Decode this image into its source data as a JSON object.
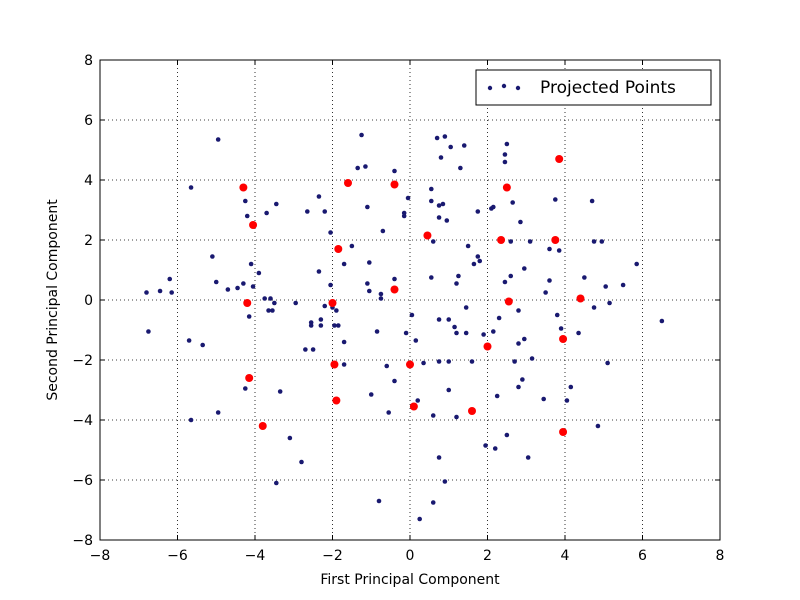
{
  "chart_data": {
    "type": "scatter",
    "title": "",
    "xlabel": "First Principal Component",
    "ylabel": "Second Principal Component",
    "xlim": [
      -8,
      8
    ],
    "ylim": [
      -8,
      8
    ],
    "xticks": [
      -8,
      -6,
      -4,
      -2,
      0,
      2,
      4,
      6,
      8
    ],
    "yticks": [
      -8,
      -6,
      -4,
      -2,
      0,
      2,
      4,
      6,
      8
    ],
    "grid": true,
    "legend": {
      "position": "top-right",
      "entries": [
        "Projected Points"
      ]
    },
    "colors": {
      "projected": "#191970",
      "highlight": "#ff0000"
    },
    "series": [
      {
        "name": "Projected Points",
        "color": "#191970",
        "points": [
          [
            -6.8,
            0.25
          ],
          [
            -6.75,
            -1.05
          ],
          [
            -6.45,
            0.3
          ],
          [
            -6.2,
            0.7
          ],
          [
            -6.15,
            0.25
          ],
          [
            -5.7,
            -1.35
          ],
          [
            -5.65,
            3.75
          ],
          [
            -5.65,
            -4.0
          ],
          [
            -5.35,
            -1.5
          ],
          [
            -5.1,
            1.45
          ],
          [
            -5.0,
            0.6
          ],
          [
            -4.95,
            5.35
          ],
          [
            -4.95,
            -3.75
          ],
          [
            -4.7,
            0.35
          ],
          [
            -4.45,
            0.4
          ],
          [
            -4.3,
            0.55
          ],
          [
            -4.25,
            3.3
          ],
          [
            -4.25,
            -2.95
          ],
          [
            -4.2,
            2.8
          ],
          [
            -4.15,
            -0.55
          ],
          [
            -4.05,
            0.45
          ],
          [
            -4.1,
            1.2
          ],
          [
            -3.9,
            0.9
          ],
          [
            -3.75,
            0.05
          ],
          [
            -3.7,
            2.9
          ],
          [
            -3.65,
            -0.35
          ],
          [
            -3.55,
            -0.35
          ],
          [
            -3.6,
            0.05
          ],
          [
            -3.5,
            -0.1
          ],
          [
            -3.45,
            3.2
          ],
          [
            -3.35,
            -3.05
          ],
          [
            -3.45,
            -6.1
          ],
          [
            -3.1,
            -4.6
          ],
          [
            -2.95,
            -0.1
          ],
          [
            -2.8,
            -5.4
          ],
          [
            -2.7,
            -1.65
          ],
          [
            -2.65,
            2.95
          ],
          [
            -2.55,
            -0.75
          ],
          [
            -2.55,
            -0.85
          ],
          [
            -2.5,
            -1.65
          ],
          [
            -2.35,
            3.45
          ],
          [
            -2.35,
            0.95
          ],
          [
            -2.3,
            -0.85
          ],
          [
            -2.3,
            -0.65
          ],
          [
            -2.2,
            2.95
          ],
          [
            -2.2,
            -0.2
          ],
          [
            -2.05,
            2.25
          ],
          [
            -2.05,
            0.5
          ],
          [
            -2.0,
            -0.25
          ],
          [
            -1.95,
            -0.85
          ],
          [
            -1.9,
            -0.35
          ],
          [
            -1.85,
            -0.85
          ],
          [
            -1.7,
            1.2
          ],
          [
            -1.7,
            -1.4
          ],
          [
            -1.7,
            -2.15
          ],
          [
            -1.5,
            1.8
          ],
          [
            -1.35,
            4.4
          ],
          [
            -1.25,
            5.5
          ],
          [
            -1.15,
            4.45
          ],
          [
            -1.1,
            3.1
          ],
          [
            -1.1,
            0.55
          ],
          [
            -1.05,
            0.3
          ],
          [
            -1.05,
            1.25
          ],
          [
            -1.0,
            -3.15
          ],
          [
            -0.85,
            -1.05
          ],
          [
            -0.8,
            -6.7
          ],
          [
            -0.75,
            0.05
          ],
          [
            -0.75,
            0.2
          ],
          [
            -0.7,
            2.3
          ],
          [
            -0.6,
            -2.2
          ],
          [
            -0.55,
            -3.75
          ],
          [
            -0.4,
            0.7
          ],
          [
            -0.4,
            4.3
          ],
          [
            -0.4,
            -2.7
          ],
          [
            -0.15,
            2.9
          ],
          [
            -0.15,
            2.8
          ],
          [
            -0.1,
            -1.1
          ],
          [
            -0.05,
            3.4
          ],
          [
            0.05,
            -0.5
          ],
          [
            0.15,
            -1.35
          ],
          [
            0.2,
            -3.35
          ],
          [
            0.25,
            -7.3
          ],
          [
            0.35,
            -2.1
          ],
          [
            0.55,
            3.7
          ],
          [
            0.55,
            3.3
          ],
          [
            0.55,
            0.75
          ],
          [
            0.6,
            1.95
          ],
          [
            0.6,
            -3.85
          ],
          [
            0.6,
            -6.75
          ],
          [
            0.7,
            5.4
          ],
          [
            0.75,
            3.15
          ],
          [
            0.75,
            2.75
          ],
          [
            0.75,
            -0.65
          ],
          [
            0.75,
            -2.05
          ],
          [
            0.75,
            -5.25
          ],
          [
            0.8,
            4.75
          ],
          [
            0.85,
            3.2
          ],
          [
            0.9,
            -6.05
          ],
          [
            0.9,
            5.45
          ],
          [
            0.95,
            2.65
          ],
          [
            1.0,
            -0.65
          ],
          [
            1.0,
            -2.05
          ],
          [
            1.0,
            -3.0
          ],
          [
            1.05,
            5.1
          ],
          [
            1.15,
            -0.9
          ],
          [
            1.2,
            -1.1
          ],
          [
            1.2,
            0.55
          ],
          [
            1.2,
            -3.9
          ],
          [
            1.25,
            0.8
          ],
          [
            1.3,
            4.4
          ],
          [
            1.4,
            5.15
          ],
          [
            1.45,
            -0.25
          ],
          [
            1.45,
            -1.1
          ],
          [
            1.5,
            1.8
          ],
          [
            1.6,
            -2.05
          ],
          [
            1.65,
            1.2
          ],
          [
            1.75,
            1.45
          ],
          [
            1.75,
            2.95
          ],
          [
            1.8,
            1.3
          ],
          [
            1.9,
            -1.15
          ],
          [
            1.95,
            -4.85
          ],
          [
            2.1,
            3.05
          ],
          [
            2.15,
            3.1
          ],
          [
            2.15,
            -1.05
          ],
          [
            2.2,
            -4.95
          ],
          [
            2.25,
            -3.2
          ],
          [
            2.3,
            -0.6
          ],
          [
            2.45,
            0.6
          ],
          [
            2.45,
            4.6
          ],
          [
            2.45,
            4.85
          ],
          [
            2.5,
            5.2
          ],
          [
            2.5,
            -4.5
          ],
          [
            2.6,
            1.95
          ],
          [
            2.6,
            0.8
          ],
          [
            2.65,
            3.25
          ],
          [
            2.7,
            -2.05
          ],
          [
            2.8,
            -1.45
          ],
          [
            2.8,
            -0.35
          ],
          [
            2.8,
            -2.9
          ],
          [
            2.85,
            2.6
          ],
          [
            2.9,
            -2.65
          ],
          [
            2.95,
            -1.3
          ],
          [
            2.95,
            1.05
          ],
          [
            3.05,
            -5.25
          ],
          [
            3.1,
            1.95
          ],
          [
            3.15,
            -1.95
          ],
          [
            3.45,
            -3.3
          ],
          [
            3.5,
            0.25
          ],
          [
            3.6,
            1.7
          ],
          [
            3.6,
            0.65
          ],
          [
            3.75,
            3.35
          ],
          [
            3.8,
            -0.5
          ],
          [
            3.85,
            1.65
          ],
          [
            3.9,
            -0.95
          ],
          [
            4.05,
            -3.35
          ],
          [
            4.15,
            -2.9
          ],
          [
            4.35,
            -1.1
          ],
          [
            4.5,
            0.75
          ],
          [
            4.7,
            3.3
          ],
          [
            4.75,
            1.95
          ],
          [
            4.75,
            -0.25
          ],
          [
            4.85,
            -4.2
          ],
          [
            4.95,
            1.95
          ],
          [
            5.05,
            0.45
          ],
          [
            5.1,
            -2.1
          ],
          [
            5.15,
            -0.1
          ],
          [
            5.5,
            0.5
          ],
          [
            5.85,
            1.2
          ],
          [
            6.5,
            -0.7
          ]
        ]
      },
      {
        "name": "",
        "color": "#ff0000",
        "points": [
          [
            -4.3,
            3.75
          ],
          [
            -4.05,
            2.5
          ],
          [
            -4.2,
            -0.1
          ],
          [
            -4.15,
            -2.6
          ],
          [
            -3.8,
            -4.2
          ],
          [
            -1.6,
            3.9
          ],
          [
            -1.85,
            1.7
          ],
          [
            -2.0,
            -0.1
          ],
          [
            -1.95,
            -2.15
          ],
          [
            -1.9,
            -3.35
          ],
          [
            -0.4,
            3.85
          ],
          [
            -0.4,
            0.35
          ],
          [
            0.45,
            2.15
          ],
          [
            0.0,
            -2.15
          ],
          [
            0.1,
            -3.55
          ],
          [
            1.6,
            -3.7
          ],
          [
            2.0,
            -1.55
          ],
          [
            2.35,
            2.0
          ],
          [
            2.5,
            3.75
          ],
          [
            2.55,
            -0.05
          ],
          [
            3.75,
            2.0
          ],
          [
            3.85,
            4.7
          ],
          [
            3.95,
            -1.3
          ],
          [
            3.95,
            -4.4
          ],
          [
            4.4,
            0.05
          ]
        ]
      }
    ]
  }
}
